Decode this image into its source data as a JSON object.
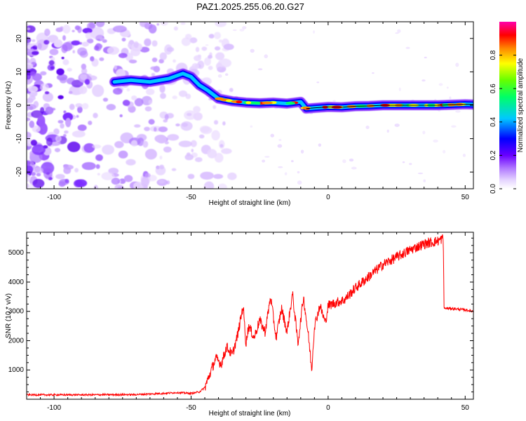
{
  "title": "PAZ1.2025.255.06.20.G27",
  "chart_data": [
    {
      "type": "heatmap",
      "name": "spectrogram",
      "xlabel": "Height of straight line (km)",
      "ylabel": "Frequency (Hz)",
      "xlim": [
        -110,
        53
      ],
      "ylim": [
        -25,
        25
      ],
      "xticks": [
        -100,
        -50,
        0,
        50
      ],
      "yticks": [
        -20,
        -10,
        0,
        10,
        20
      ],
      "colorbar": {
        "label": "Normalized spectral amplitude",
        "range": [
          0.0,
          1.0
        ],
        "ticks": [
          0.0,
          0.2,
          0.4,
          0.6,
          0.8
        ],
        "colormap": [
          "#ffffff",
          "#d6b8ff",
          "#8a2be2",
          "#0000ff",
          "#00ccff",
          "#00ff66",
          "#ffff00",
          "#ff8800",
          "#ff0000",
          "#ff00aa"
        ]
      },
      "ridge": {
        "x": [
          -78,
          -72,
          -65,
          -58,
          -53,
          -50,
          -47,
          -44,
          -40,
          -35,
          -30,
          -25,
          -20,
          -15,
          -10,
          -8,
          -5,
          0,
          5,
          10,
          15,
          20,
          30,
          40,
          50,
          53
        ],
        "y": [
          7,
          7.5,
          7,
          8,
          9.5,
          8.5,
          6,
          4.5,
          2,
          1.2,
          0.8,
          0.6,
          0.8,
          0.5,
          1.0,
          -1,
          -0.8,
          -0.5,
          -0.6,
          -0.3,
          -0.2,
          0,
          0,
          0,
          0.3,
          0.2
        ]
      }
    },
    {
      "type": "line",
      "name": "snr",
      "xlabel": "Height of straight line (km)",
      "ylabel": "SNR (10 * v/v)",
      "xlim": [
        -110,
        53
      ],
      "ylim": [
        0,
        5700
      ],
      "xticks": [
        -100,
        -50,
        0,
        50
      ],
      "yticks": [
        1000,
        2000,
        3000,
        4000,
        5000
      ],
      "color": "#ff0000",
      "series": [
        {
          "name": "SNR",
          "x": [
            -110,
            -90,
            -70,
            -60,
            -55,
            -50,
            -47,
            -45,
            -43,
            -41,
            -39,
            -37,
            -35,
            -33,
            -31,
            -30,
            -29,
            -27,
            -25,
            -23,
            -21,
            -19,
            -17,
            -15,
            -13,
            -11,
            -9,
            -7,
            -6,
            -5,
            -3,
            -1,
            0,
            3,
            6,
            10,
            15,
            20,
            25,
            30,
            35,
            40,
            42,
            42.3,
            45,
            50,
            53
          ],
          "y": [
            150,
            150,
            160,
            200,
            230,
            200,
            250,
            400,
            900,
            1400,
            1200,
            1800,
            1500,
            2200,
            3200,
            1900,
            2500,
            2100,
            2700,
            2300,
            3500,
            2100,
            3100,
            2300,
            3600,
            1900,
            3500,
            2000,
            1000,
            2500,
            3200,
            2600,
            3200,
            3300,
            3400,
            3800,
            4200,
            4600,
            4850,
            5100,
            5300,
            5400,
            5500,
            3100,
            3100,
            3050,
            3000
          ]
        }
      ]
    }
  ]
}
